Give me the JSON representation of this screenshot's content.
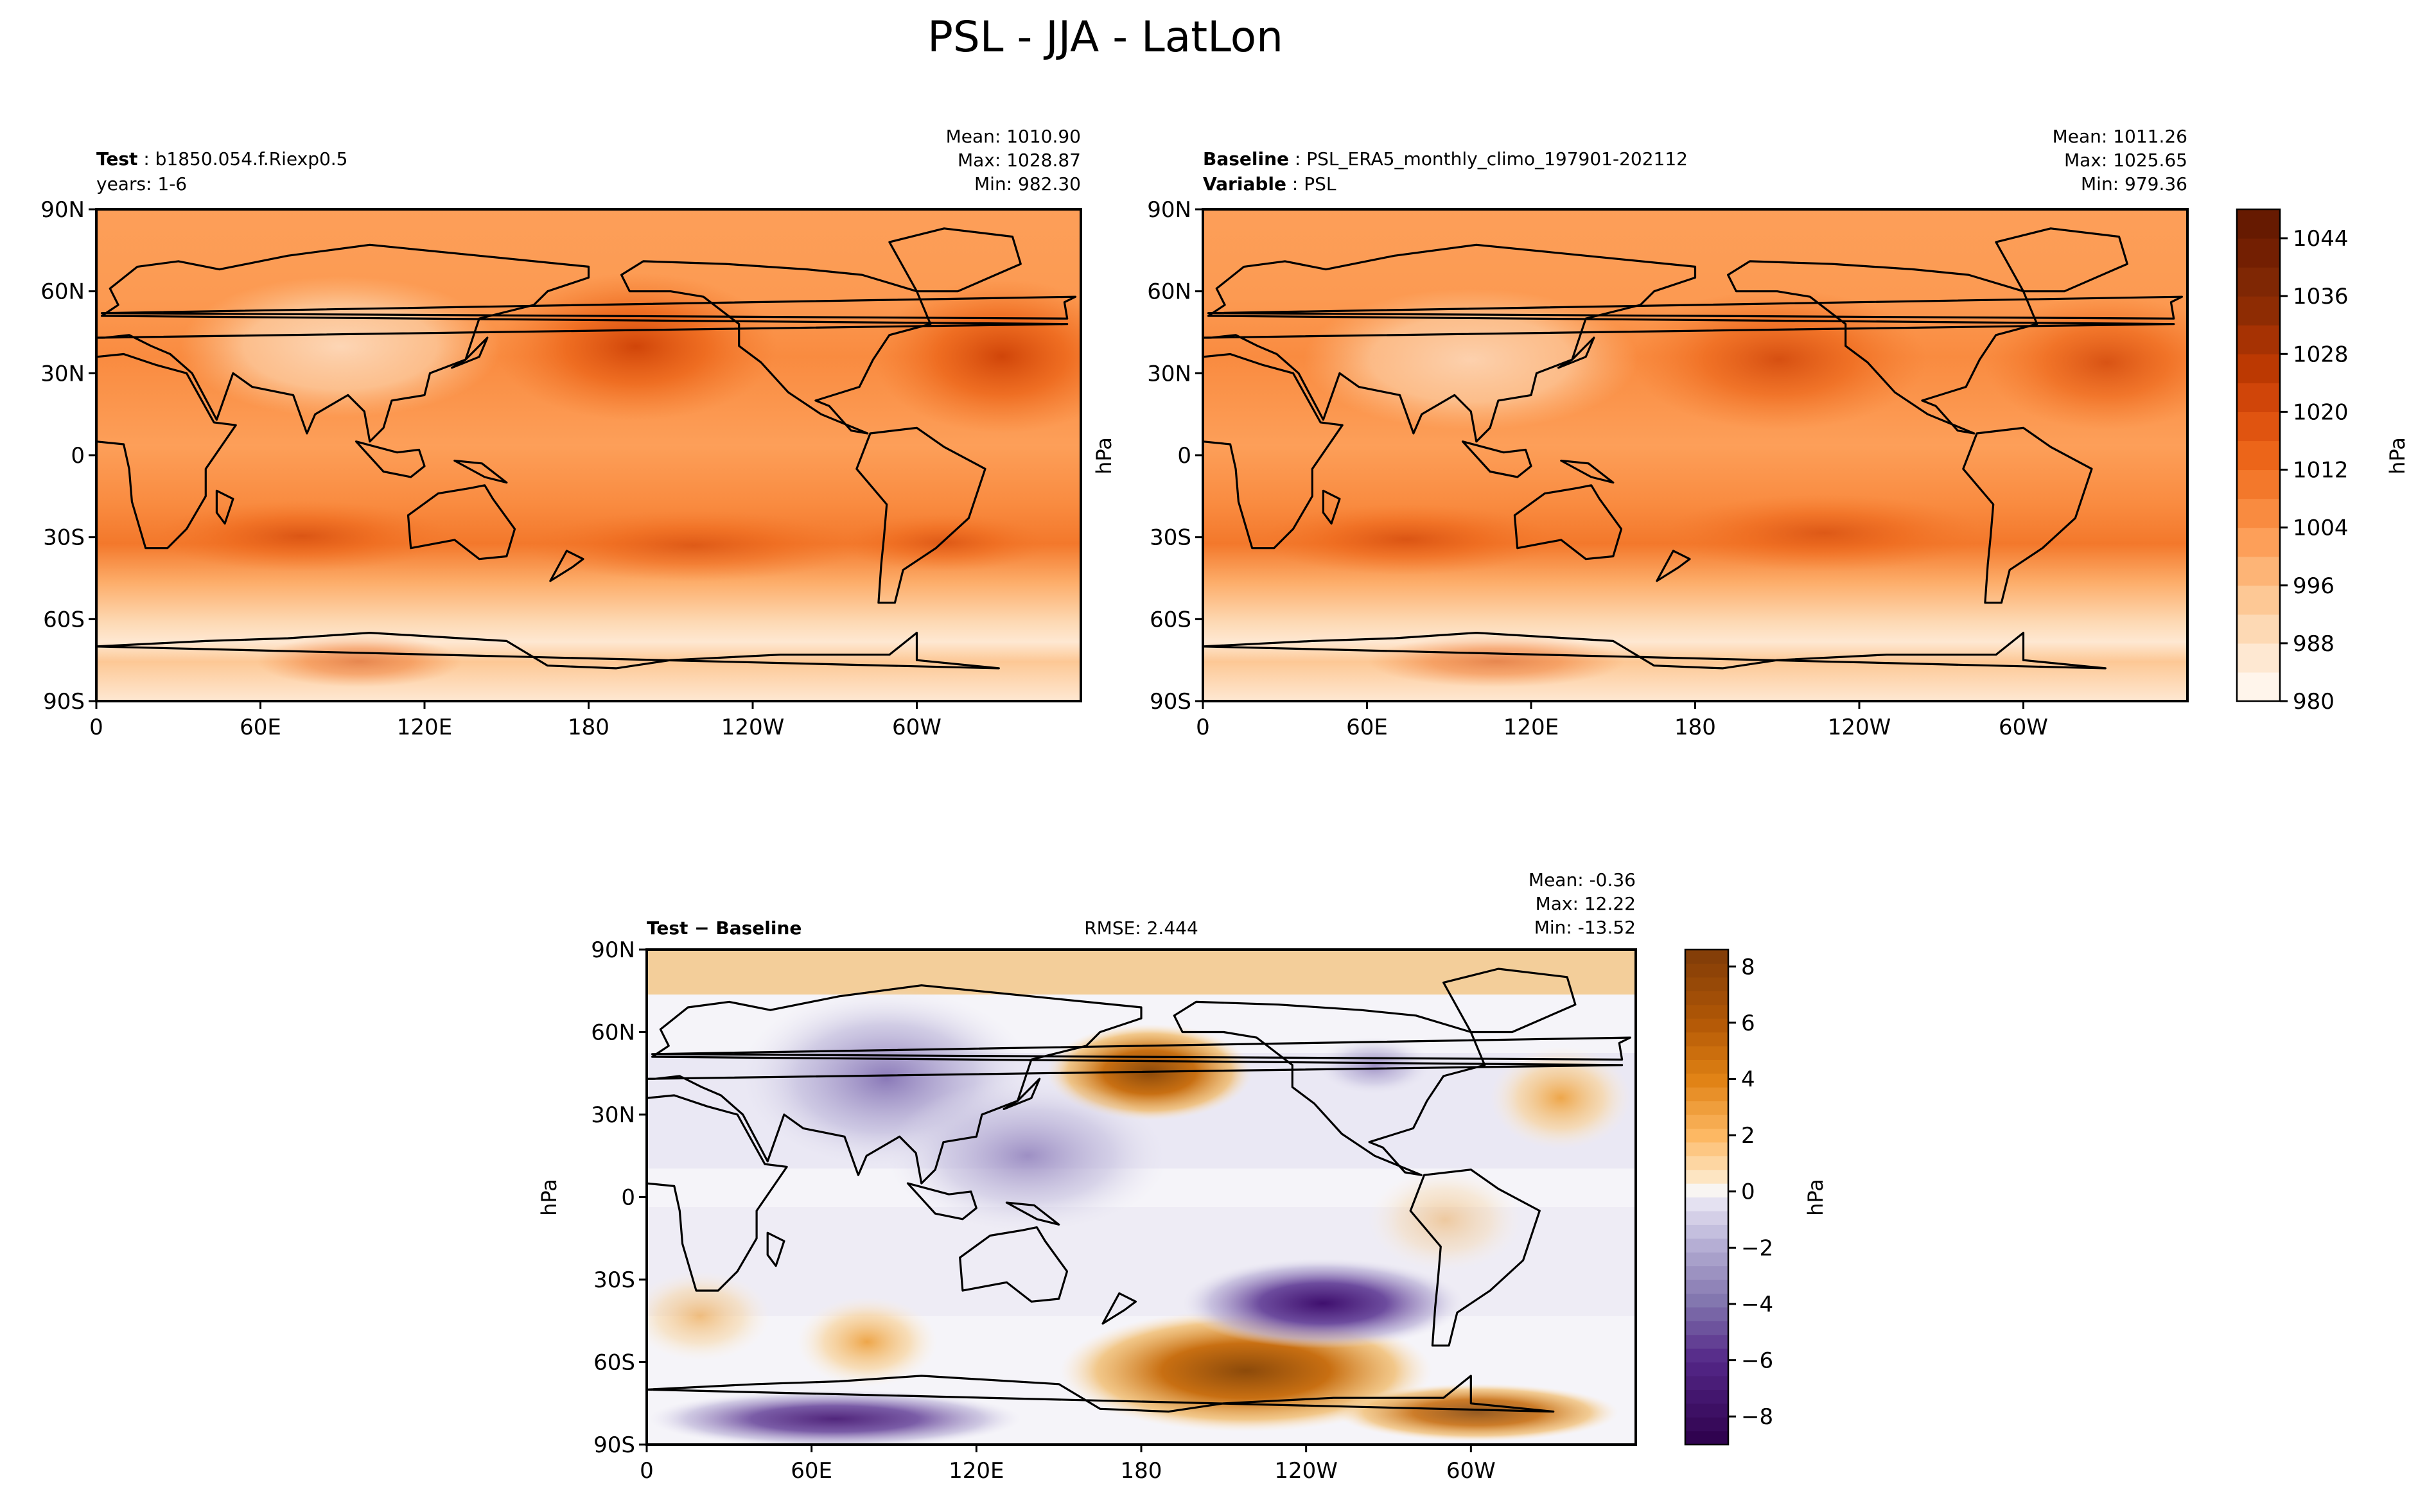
{
  "figure": {
    "title": "PSL - JJA - LatLon"
  },
  "chart_data": [
    {
      "type": "heatmap",
      "panel": "test",
      "label_bold": "Test",
      "label_text": "b1850.054.f.Riexp0.5",
      "label_line2": "years: 1-6",
      "stats": [
        "Mean: 1010.90",
        "Max: 1028.87",
        "Min: 982.30"
      ],
      "x_ticks": [
        "0",
        "60E",
        "120E",
        "180",
        "120W",
        "60W"
      ],
      "y_ticks": [
        "90N",
        "60N",
        "30N",
        "0",
        "30S",
        "60S",
        "90S"
      ],
      "xlim": [
        0,
        360
      ],
      "ylim": [
        -90,
        90
      ],
      "colormap": "Oranges",
      "range": [
        980,
        1048
      ]
    },
    {
      "type": "heatmap",
      "panel": "baseline",
      "label_bold": "Baseline",
      "label_text": "PSL_ERA5_monthly_climo_197901-202112",
      "label_bold2": "Variable",
      "label_text2": "PSL",
      "stats": [
        "Mean: 1011.26",
        "Max: 1025.65",
        "Min: 979.36"
      ],
      "x_ticks": [
        "0",
        "60E",
        "120E",
        "180",
        "120W",
        "60W"
      ],
      "y_ticks": [
        "90N",
        "60N",
        "30N",
        "0",
        "30S",
        "60S",
        "90S"
      ],
      "xlim": [
        0,
        360
      ],
      "ylim": [
        -90,
        90
      ],
      "colormap": "Oranges",
      "range": [
        980,
        1048
      ],
      "colorbar": {
        "label": "hPa",
        "ticks": [
          "980",
          "988",
          "996",
          "1004",
          "1012",
          "1020",
          "1028",
          "1036",
          "1044"
        ],
        "tick_values": [
          980,
          988,
          996,
          1004,
          1012,
          1020,
          1028,
          1036,
          1044
        ],
        "min": 980,
        "max": 1048,
        "levels": 17,
        "colors": [
          "#fff5eb",
          "#fee8d2",
          "#fdd9b4",
          "#fdc895",
          "#fdb476",
          "#fd9f59",
          "#f98b40",
          "#f3782b",
          "#ec6519",
          "#e05410",
          "#d04509",
          "#bc3902",
          "#a63203",
          "#8e2c03",
          "#7f2704",
          "#731f02",
          "#661a01"
        ]
      }
    },
    {
      "type": "heatmap",
      "panel": "difference",
      "label_bold": "Test − Baseline",
      "rmse": "RMSE: 2.444",
      "stats": [
        "Mean: -0.36",
        "Max: 12.22",
        "Min: -13.52"
      ],
      "x_ticks": [
        "0",
        "60E",
        "120E",
        "180",
        "120W",
        "60W"
      ],
      "y_ticks": [
        "90N",
        "60N",
        "30N",
        "0",
        "30S",
        "60S",
        "90S"
      ],
      "y_axis_label": "hPa",
      "xlim": [
        0,
        360
      ],
      "ylim": [
        -90,
        90
      ],
      "colormap": "PuOr_r",
      "colorbar": {
        "label": "hPa",
        "ticks": [
          "8",
          "6",
          "4",
          "2",
          "0",
          "−2",
          "−4",
          "−6",
          "−8"
        ],
        "tick_values": [
          8,
          6,
          4,
          2,
          0,
          -2,
          -4,
          -6,
          -8
        ],
        "min": -9,
        "max": 8.6
      }
    }
  ],
  "shared": {
    "middle_axis_label": "hPa"
  }
}
